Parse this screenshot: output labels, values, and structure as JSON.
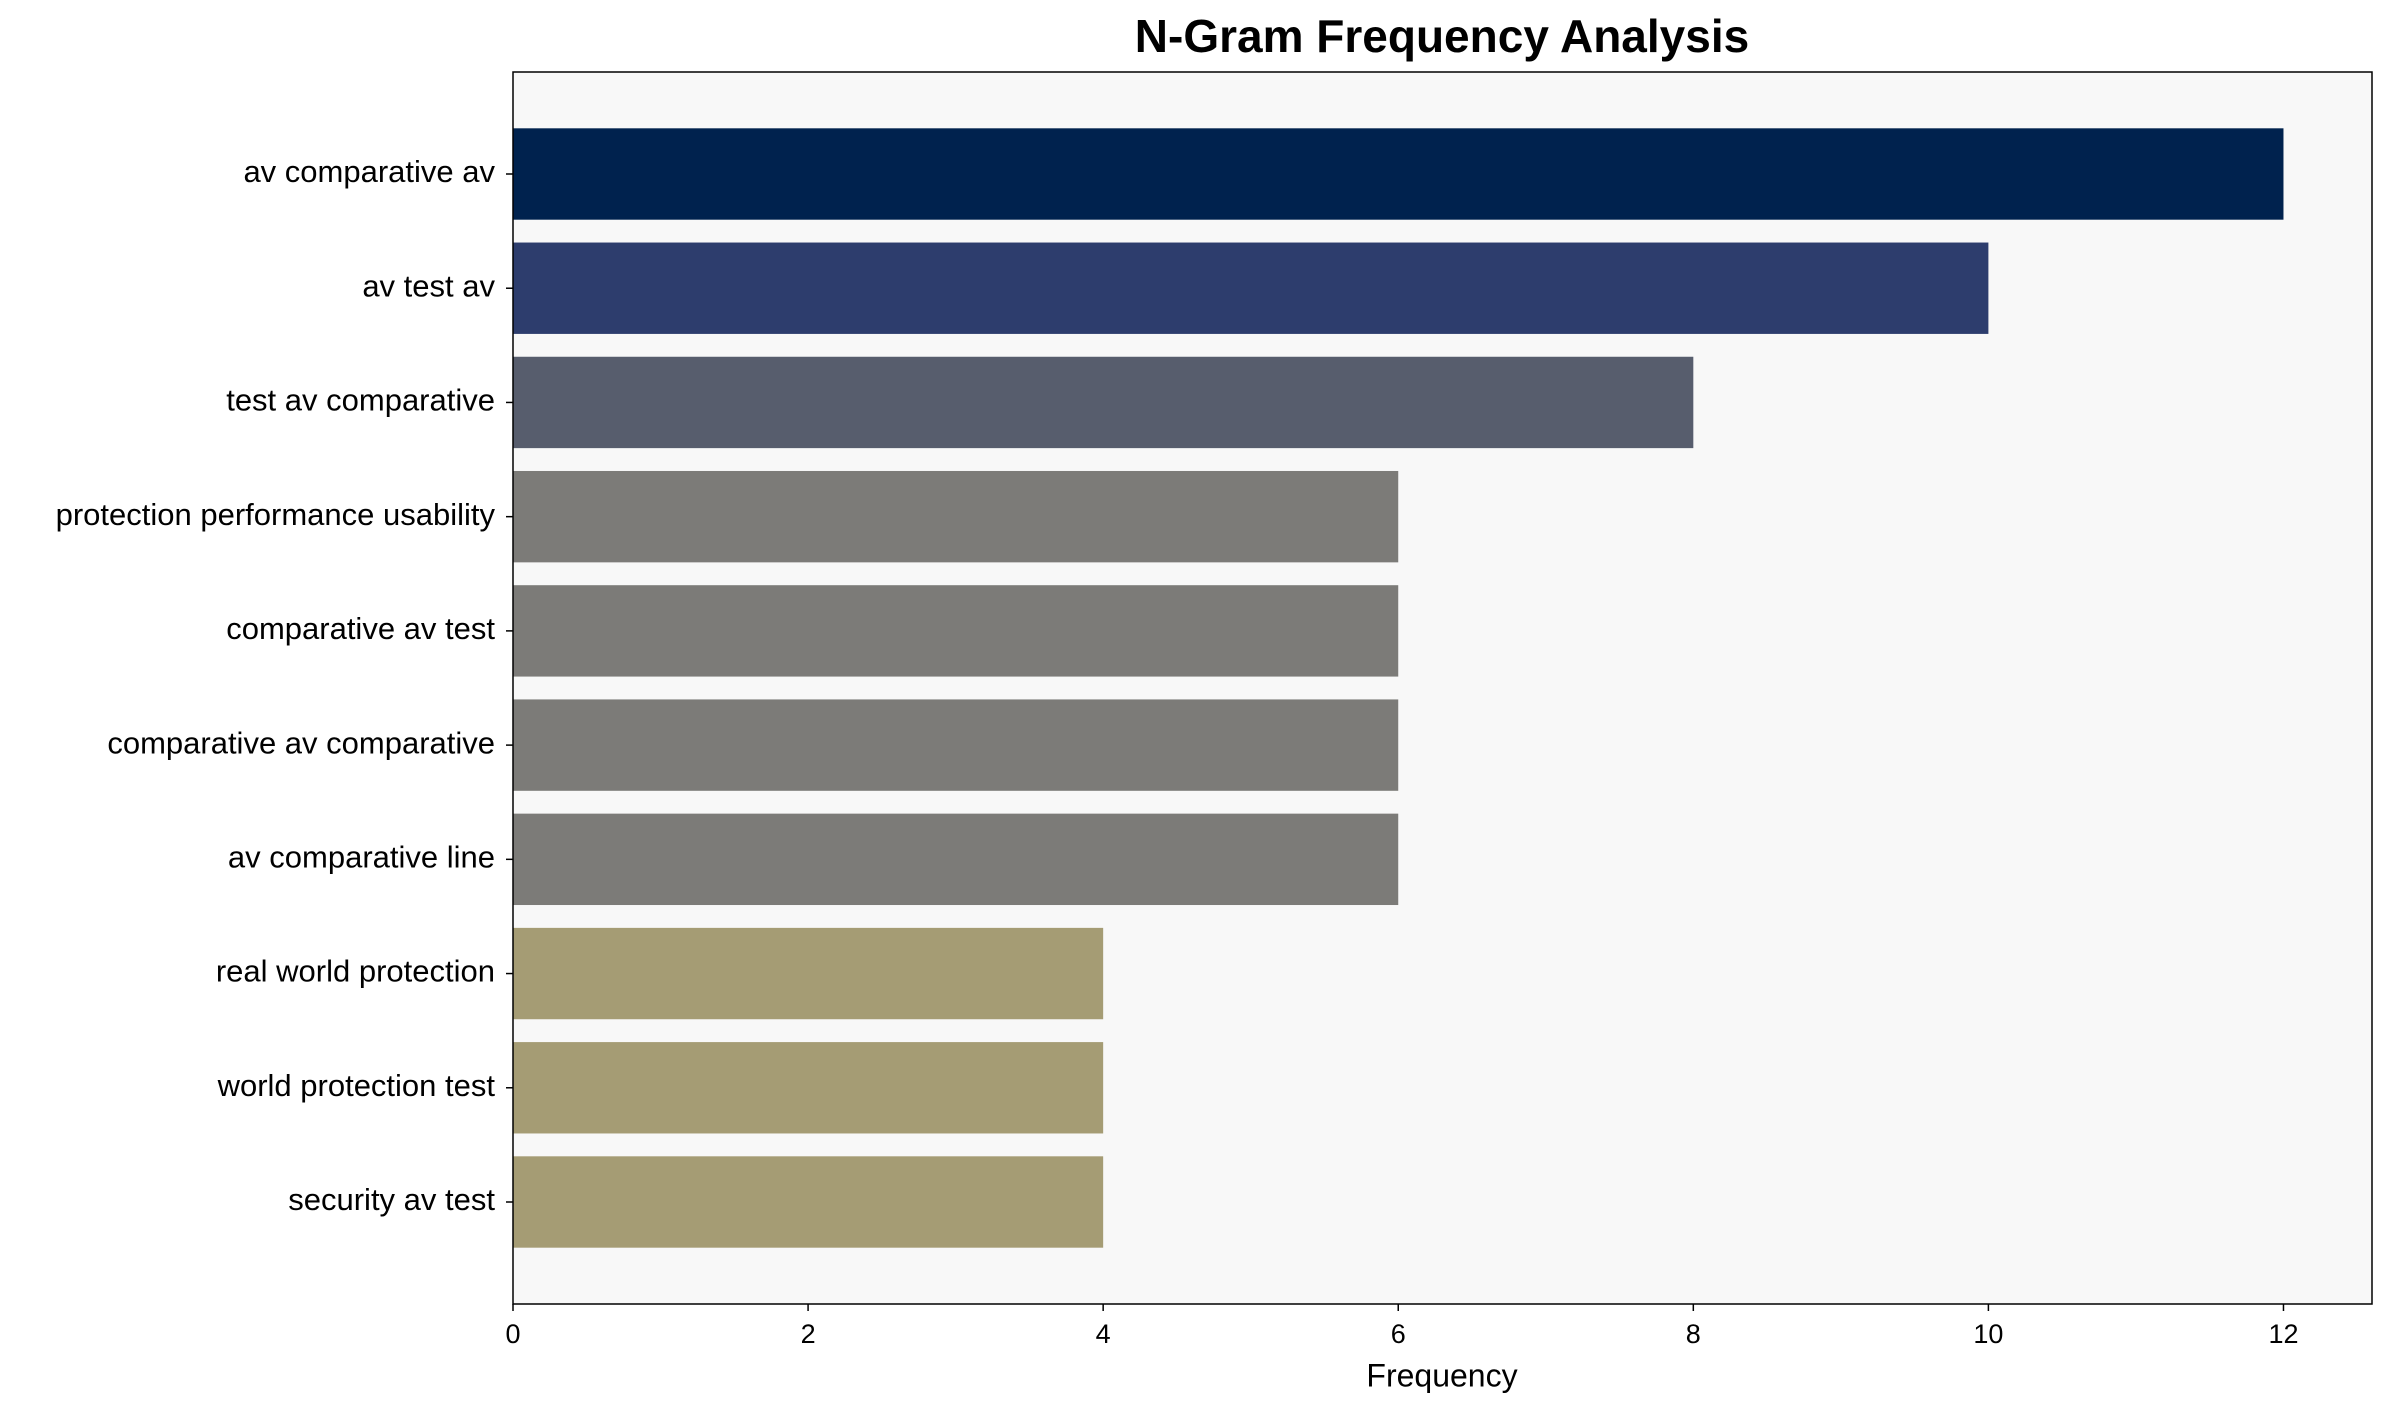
{
  "chart_data": {
    "type": "barh",
    "title": "N-Gram Frequency Analysis",
    "xlabel": "Frequency",
    "categories": [
      "av comparative av",
      "av test av",
      "test av comparative",
      "protection performance usability",
      "comparative av test",
      "comparative av comparative",
      "av comparative line",
      "real world protection",
      "world protection test",
      "security av test"
    ],
    "values": [
      12,
      10,
      8,
      6,
      6,
      6,
      6,
      4,
      4,
      4
    ],
    "colors": [
      "#00224e",
      "#2d3d6d",
      "#575d6d",
      "#7c7b78",
      "#7c7b78",
      "#7c7b78",
      "#7c7b78",
      "#a59c74",
      "#a59c74",
      "#a59c74"
    ],
    "xlim": [
      0,
      12.6
    ],
    "xticks": [
      0,
      2,
      4,
      6,
      8,
      10,
      12
    ],
    "background": "#f8f8f8"
  }
}
